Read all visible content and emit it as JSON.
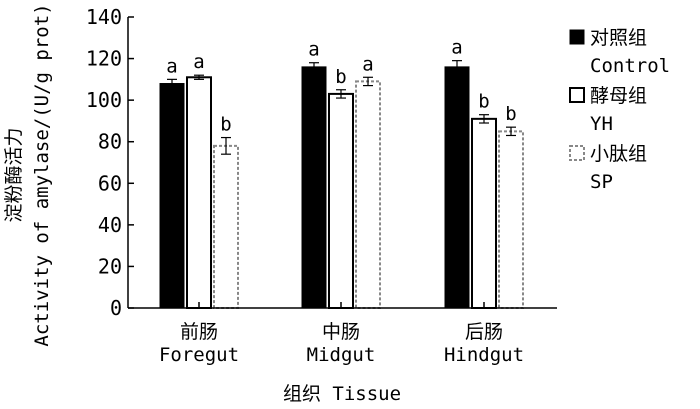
{
  "chart_data": {
    "type": "bar",
    "title": "",
    "categories_zh": [
      "前肠",
      "中肠",
      "后肠"
    ],
    "categories": [
      "Foregut",
      "Midgut",
      "Hindgut"
    ],
    "xlabel": "组织 Tissue",
    "ylabel_zh": "淀粉酶活力",
    "ylabel": "Activity of amylase/(U/g prot)",
    "ylim": [
      0,
      140
    ],
    "yticks": [
      0,
      20,
      40,
      60,
      80,
      100,
      120,
      140
    ],
    "grid": false,
    "legend_position": "right",
    "series": [
      {
        "name_zh": "对照组",
        "name": "Control",
        "style": "solid",
        "color": "#000000",
        "values": [
          108,
          116,
          116
        ],
        "errors": [
          2,
          2,
          3
        ],
        "labels": [
          "a",
          "a",
          "a"
        ]
      },
      {
        "name_zh": "酵母组",
        "name": "YH",
        "style": "outline",
        "color": "#000000",
        "values": [
          111,
          103,
          91
        ],
        "errors": [
          1,
          2,
          2
        ],
        "labels": [
          "a",
          "b",
          "b"
        ]
      },
      {
        "name_zh": "小肽组",
        "name": "SP",
        "style": "dashed",
        "color": "#888888",
        "values": [
          78,
          109,
          85
        ],
        "errors": [
          4,
          2,
          2
        ],
        "labels": [
          "b",
          "a",
          "b"
        ]
      }
    ]
  }
}
